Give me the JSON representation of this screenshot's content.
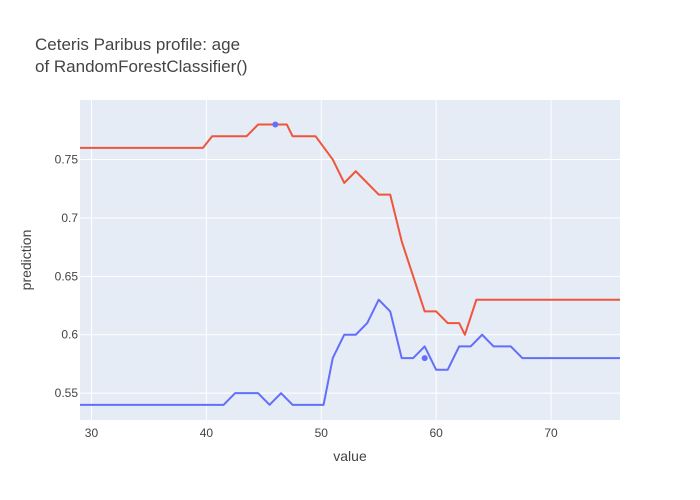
{
  "chart_data": {
    "type": "line",
    "title_line1": "Ceteris Paribus profile: age",
    "title_line2": "of RandomForestClassifier()",
    "xlabel": "value",
    "ylabel": "prediction",
    "xlim": [
      29,
      76
    ],
    "ylim": [
      0.527,
      0.801
    ],
    "x_ticks": [
      30,
      40,
      50,
      60,
      70
    ],
    "y_ticks": [
      0.55,
      0.6,
      0.65,
      0.7,
      0.75
    ],
    "x_tick_labels": [
      "30",
      "40",
      "50",
      "60",
      "70"
    ],
    "y_tick_labels": [
      "0.55",
      "0.6",
      "0.65",
      "0.7",
      "0.75"
    ],
    "grid": true,
    "legend": "none",
    "plot_bg": "#e5ecf6",
    "series": [
      {
        "color": "#ef553b",
        "x": [
          29,
          39.7,
          40.5,
          43.5,
          44.5,
          47,
          47.5,
          49.5,
          51,
          52,
          53,
          55,
          56,
          57,
          58,
          59,
          60,
          61,
          62,
          62.5,
          63.5,
          76
        ],
        "y": [
          0.76,
          0.76,
          0.77,
          0.77,
          0.78,
          0.78,
          0.77,
          0.77,
          0.75,
          0.73,
          0.74,
          0.72,
          0.72,
          0.68,
          0.65,
          0.62,
          0.62,
          0.61,
          0.61,
          0.6,
          0.63,
          0.63
        ],
        "point": {
          "x": 46,
          "y": 0.78
        }
      },
      {
        "color": "#636efa",
        "x": [
          29,
          41.5,
          42.5,
          44.5,
          45.5,
          46.5,
          47.5,
          50.2,
          51,
          52,
          53,
          54,
          55,
          56,
          57,
          58,
          59,
          60,
          61,
          62,
          63,
          64,
          65,
          66.5,
          67.5,
          76
        ],
        "y": [
          0.54,
          0.54,
          0.55,
          0.55,
          0.54,
          0.55,
          0.54,
          0.54,
          0.58,
          0.6,
          0.6,
          0.61,
          0.63,
          0.62,
          0.58,
          0.58,
          0.59,
          0.57,
          0.57,
          0.59,
          0.59,
          0.6,
          0.59,
          0.59,
          0.58,
          0.58
        ],
        "point": {
          "x": 59,
          "y": 0.58
        }
      }
    ]
  }
}
